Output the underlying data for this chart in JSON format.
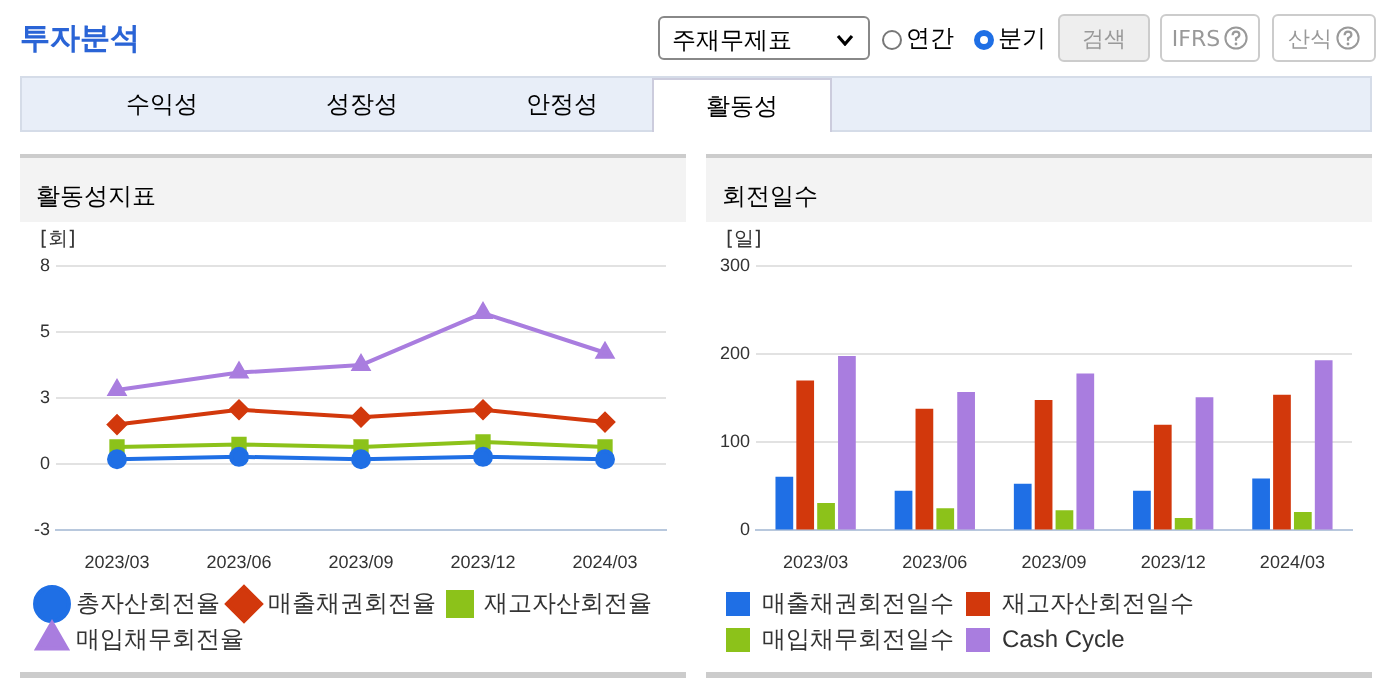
{
  "chart_data": [
    {
      "type": "other",
      "title": "투자분석",
      "annotations": [
        "주재무제표",
        "연간",
        "분기",
        "검색",
        "IFRS",
        "산식",
        "수익성",
        "성장성",
        "안정성",
        "활동성"
      ]
    },
    {
      "type": "line",
      "title": "활동성지표",
      "ylabel": "[회]",
      "categories": [
        "2023/03",
        "2023/06",
        "2023/09",
        "2023/12",
        "2024/03"
      ],
      "series": [
        {
          "name": "총자산회전율",
          "color": "#1f6fe5",
          "marker": "circle",
          "values": [
            0.2,
            0.3,
            0.2,
            0.3,
            0.2
          ]
        },
        {
          "name": "매출채권회전율",
          "color": "#d2380c",
          "marker": "diamond",
          "values": [
            1.6,
            2.2,
            1.9,
            2.2,
            1.7
          ]
        },
        {
          "name": "재고자산회전율",
          "color": "#8cc21a",
          "marker": "square",
          "values": [
            0.7,
            0.8,
            0.7,
            0.9,
            0.7
          ]
        },
        {
          "name": "매입채무회전율",
          "color": "#a97ddf",
          "marker": "triangle",
          "values": [
            3,
            3.7,
            4,
            6.1,
            4.5
          ]
        }
      ],
      "ylim": [
        -2.67,
        8
      ],
      "yticks": [
        {
          "value": -2.67,
          "label": "-3"
        },
        0,
        {
          "value": 2.67,
          "label": "3"
        },
        {
          "value": 5.33,
          "label": "5"
        },
        8
      ],
      "grid": "y",
      "legend": "bottom"
    },
    {
      "type": "bar",
      "title": "회전일수",
      "ylabel": "[일]",
      "categories": [
        "2023/03",
        "2023/06",
        "2023/09",
        "2023/12",
        "2024/03"
      ],
      "series": [
        {
          "name": "매출채권회전일수",
          "color": "#1f6fe5",
          "values": [
            61,
            45,
            53,
            45,
            59
          ]
        },
        {
          "name": "재고자산회전일수",
          "color": "#d2380c",
          "values": [
            170,
            138,
            148,
            120,
            154
          ]
        },
        {
          "name": "매입채무회전일수",
          "color": "#8cc21a",
          "values": [
            31,
            25,
            23,
            14,
            21
          ]
        },
        {
          "name": "Cash Cycle",
          "color": "#a97ddf",
          "values": [
            198,
            157,
            178,
            151,
            193
          ]
        }
      ],
      "ylim": [
        0,
        300
      ],
      "yticks": [
        0,
        100,
        200,
        300
      ],
      "grid": "y",
      "legend": "bottom"
    }
  ]
}
